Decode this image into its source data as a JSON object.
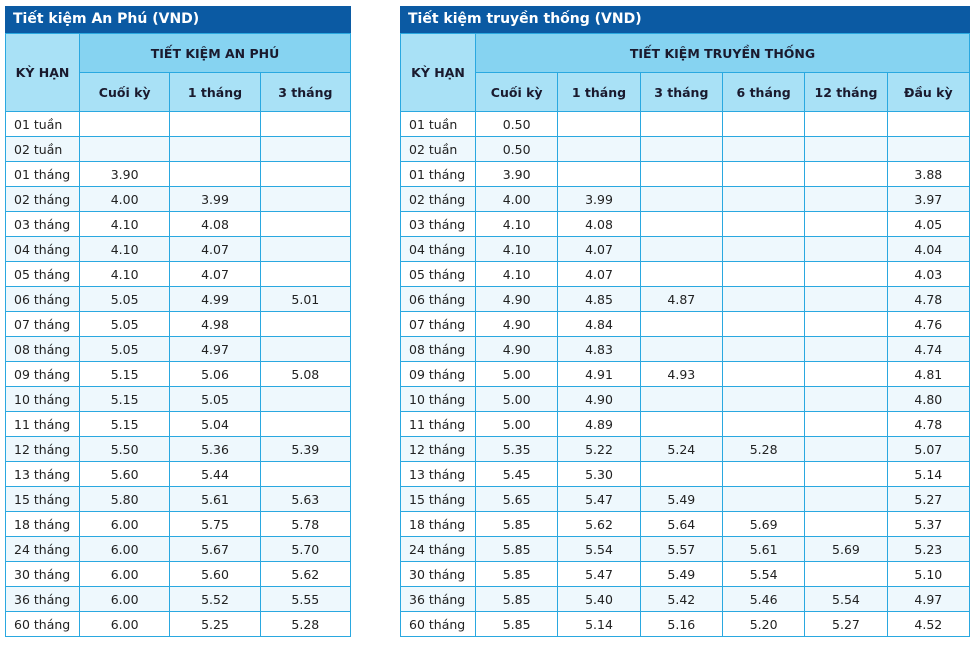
{
  "left": {
    "title": "Tiết kiệm An Phú (VND)",
    "term_header": "KỲ HẠN",
    "group_header": "TIẾT KIỆM AN PHÚ",
    "columns": [
      "Cuối kỳ",
      "1 tháng",
      "3 tháng"
    ],
    "rows": [
      [
        "01 tuần",
        "",
        "",
        ""
      ],
      [
        "02 tuần",
        "",
        "",
        ""
      ],
      [
        "01 tháng",
        "3.90",
        "",
        ""
      ],
      [
        "02 tháng",
        "4.00",
        "3.99",
        ""
      ],
      [
        "03 tháng",
        "4.10",
        "4.08",
        ""
      ],
      [
        "04 tháng",
        "4.10",
        "4.07",
        ""
      ],
      [
        "05 tháng",
        "4.10",
        "4.07",
        ""
      ],
      [
        "06 tháng",
        "5.05",
        "4.99",
        "5.01"
      ],
      [
        "07 tháng",
        "5.05",
        "4.98",
        ""
      ],
      [
        "08 tháng",
        "5.05",
        "4.97",
        ""
      ],
      [
        "09 tháng",
        "5.15",
        "5.06",
        "5.08"
      ],
      [
        "10 tháng",
        "5.15",
        "5.05",
        ""
      ],
      [
        "11 tháng",
        "5.15",
        "5.04",
        ""
      ],
      [
        "12 tháng",
        "5.50",
        "5.36",
        "5.39"
      ],
      [
        "13 tháng",
        "5.60",
        "5.44",
        ""
      ],
      [
        "15 tháng",
        "5.80",
        "5.61",
        "5.63"
      ],
      [
        "18 tháng",
        "6.00",
        "5.75",
        "5.78"
      ],
      [
        "24 tháng",
        "6.00",
        "5.67",
        "5.70"
      ],
      [
        "30 tháng",
        "6.00",
        "5.60",
        "5.62"
      ],
      [
        "36 tháng",
        "6.00",
        "5.52",
        "5.55"
      ],
      [
        "60 tháng",
        "6.00",
        "5.25",
        "5.28"
      ]
    ]
  },
  "right": {
    "title": "Tiết kiệm truyền thống (VND)",
    "term_header": "KỲ HẠN",
    "group_header": "TIẾT KIỆM TRUYỀN THỐNG",
    "columns": [
      "Cuối kỳ",
      "1 tháng",
      "3 tháng",
      "6 tháng",
      "12 tháng",
      "Đầu kỳ"
    ],
    "rows": [
      [
        "01 tuần",
        "0.50",
        "",
        "",
        "",
        "",
        ""
      ],
      [
        "02 tuần",
        "0.50",
        "",
        "",
        "",
        "",
        ""
      ],
      [
        "01 tháng",
        "3.90",
        "",
        "",
        "",
        "",
        "3.88"
      ],
      [
        "02 tháng",
        "4.00",
        "3.99",
        "",
        "",
        "",
        "3.97"
      ],
      [
        "03 tháng",
        "4.10",
        "4.08",
        "",
        "",
        "",
        "4.05"
      ],
      [
        "04 tháng",
        "4.10",
        "4.07",
        "",
        "",
        "",
        "4.04"
      ],
      [
        "05 tháng",
        "4.10",
        "4.07",
        "",
        "",
        "",
        "4.03"
      ],
      [
        "06 tháng",
        "4.90",
        "4.85",
        "4.87",
        "",
        "",
        "4.78"
      ],
      [
        "07 tháng",
        "4.90",
        "4.84",
        "",
        "",
        "",
        "4.76"
      ],
      [
        "08 tháng",
        "4.90",
        "4.83",
        "",
        "",
        "",
        "4.74"
      ],
      [
        "09 tháng",
        "5.00",
        "4.91",
        "4.93",
        "",
        "",
        "4.81"
      ],
      [
        "10 tháng",
        "5.00",
        "4.90",
        "",
        "",
        "",
        "4.80"
      ],
      [
        "11 tháng",
        "5.00",
        "4.89",
        "",
        "",
        "",
        "4.78"
      ],
      [
        "12 tháng",
        "5.35",
        "5.22",
        "5.24",
        "5.28",
        "",
        "5.07"
      ],
      [
        "13 tháng",
        "5.45",
        "5.30",
        "",
        "",
        "",
        "5.14"
      ],
      [
        "15 tháng",
        "5.65",
        "5.47",
        "5.49",
        "",
        "",
        "5.27"
      ],
      [
        "18 tháng",
        "5.85",
        "5.62",
        "5.64",
        "5.69",
        "",
        "5.37"
      ],
      [
        "24 tháng",
        "5.85",
        "5.54",
        "5.57",
        "5.61",
        "5.69",
        "5.23"
      ],
      [
        "30 tháng",
        "5.85",
        "5.47",
        "5.49",
        "5.54",
        "",
        "5.10"
      ],
      [
        "36 tháng",
        "5.85",
        "5.40",
        "5.42",
        "5.46",
        "5.54",
        "4.97"
      ],
      [
        "60 tháng",
        "5.85",
        "5.14",
        "5.16",
        "5.20",
        "5.27",
        "4.52"
      ]
    ]
  },
  "colors": {
    "title_bar": "#0b5aa3",
    "header": "#86d3f1",
    "subheader": "#a9e1f6",
    "grid": "#2aa8e0",
    "row_alt": "#eef8fd"
  }
}
